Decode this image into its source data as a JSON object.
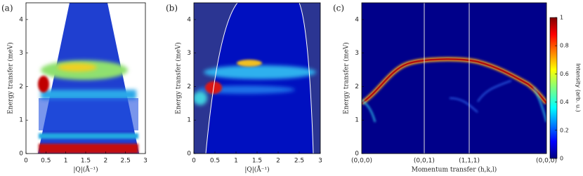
{
  "chart_data": [
    {
      "type": "heatmap",
      "label": "(a)",
      "xlabel": "|Q|(Å⁻¹)",
      "ylabel": "Energy transfer (meV)",
      "xlim": [
        0,
        3
      ],
      "xticks": [
        0,
        0.5,
        1,
        1.5,
        2,
        2.5,
        3
      ],
      "ylim": [
        0,
        4.5
      ],
      "yticks": [
        0,
        1,
        2,
        3,
        4
      ]
    },
    {
      "type": "heatmap",
      "label": "(b)",
      "xlabel": "|Q|(Å⁻¹)",
      "ylabel": "Energy transfer (meV)",
      "xlim": [
        0,
        3
      ],
      "xticks": [
        0,
        0.5,
        1,
        1.5,
        2,
        2.5,
        3
      ],
      "ylim": [
        0,
        4.5
      ],
      "yticks": [
        0,
        1,
        2,
        3,
        4
      ]
    },
    {
      "type": "heatmap",
      "label": "(c)",
      "xlabel": "Momentum transfer (h,k,l)",
      "ylabel": "Energy transfer (meV)",
      "categories": [
        "(0,0,0)",
        "(0,0,1)",
        "(1,1,1)",
        "(0,0,0)"
      ],
      "ylim": [
        0,
        4.5
      ],
      "yticks": [
        0,
        1,
        2,
        3,
        4
      ],
      "colorbar": {
        "label": "Intensity (arb. u.)",
        "lim": [
          0,
          1
        ],
        "ticks": [
          0,
          0.2,
          0.4,
          0.6,
          0.8,
          1
        ]
      }
    }
  ]
}
